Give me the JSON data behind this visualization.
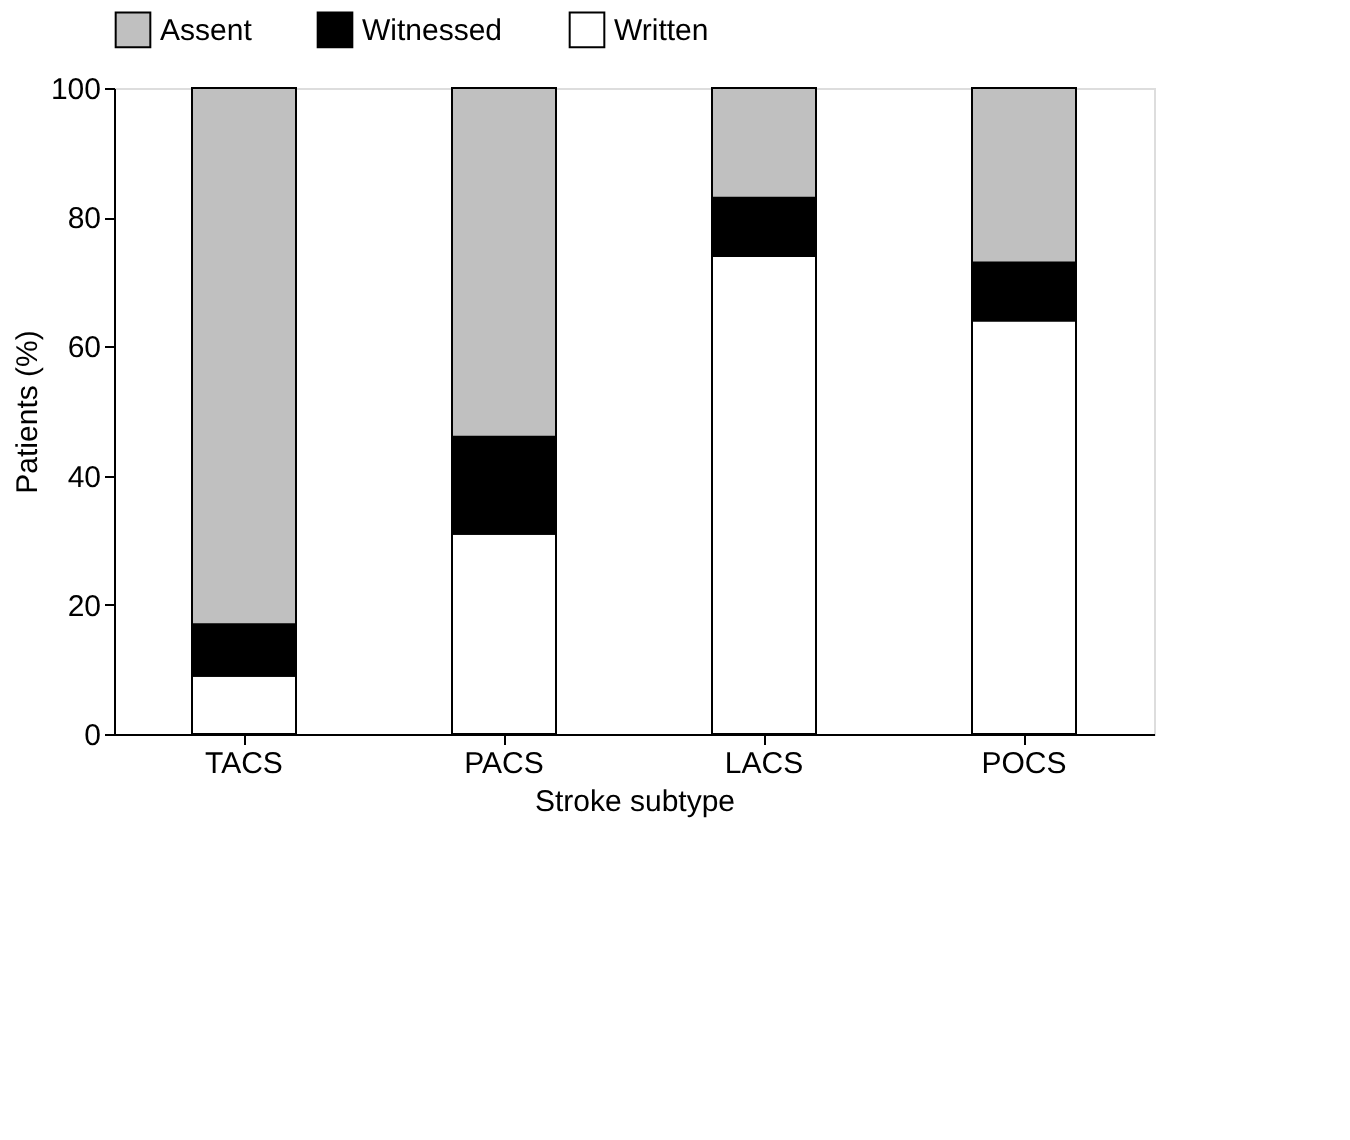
{
  "chart_data": {
    "type": "bar",
    "stacked": true,
    "xlabel": "Stroke subtype",
    "ylabel": "Patients (%)",
    "categories": [
      "TACS",
      "PACS",
      "LACS",
      "POCS"
    ],
    "series": [
      {
        "name": "Written",
        "color": "#ffffff",
        "values": [
          9,
          31,
          74,
          64
        ]
      },
      {
        "name": "Witnessed",
        "color": "#000000",
        "values": [
          8,
          15,
          9,
          9
        ]
      },
      {
        "name": "Assent",
        "color": "#c0c0c0",
        "values": [
          83,
          54,
          17,
          27
        ]
      }
    ],
    "ylim": [
      0,
      100
    ],
    "yticks": [
      0,
      20,
      40,
      60,
      80,
      100
    ],
    "grid": false,
    "legend": "top"
  }
}
